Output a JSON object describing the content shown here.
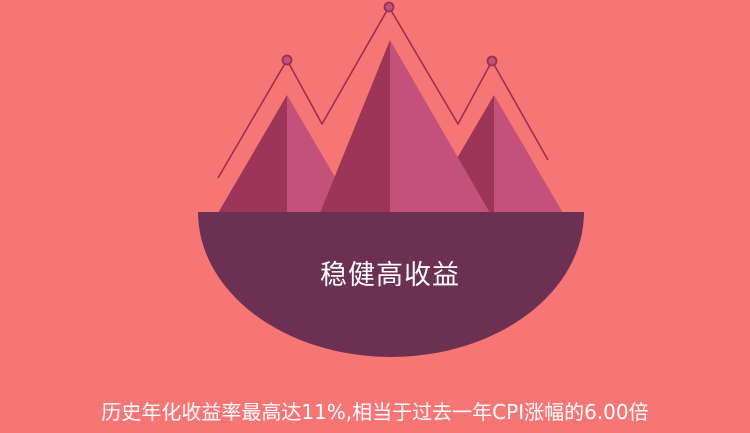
{
  "illustration": {
    "name": "mountain-peaks-illustration",
    "colors": {
      "background": "#f67676",
      "peak_light": "#c4517a",
      "peak_dark": "#9c3558",
      "bowl": "#6b3052",
      "trend_line": "#9a3050",
      "marker_fill": "#c4517a"
    }
  },
  "badge": {
    "title": "稳健高收益"
  },
  "caption": {
    "text": "历史年化收益率最高达11%,相当于过去一年CPI涨幅的6.00倍"
  }
}
